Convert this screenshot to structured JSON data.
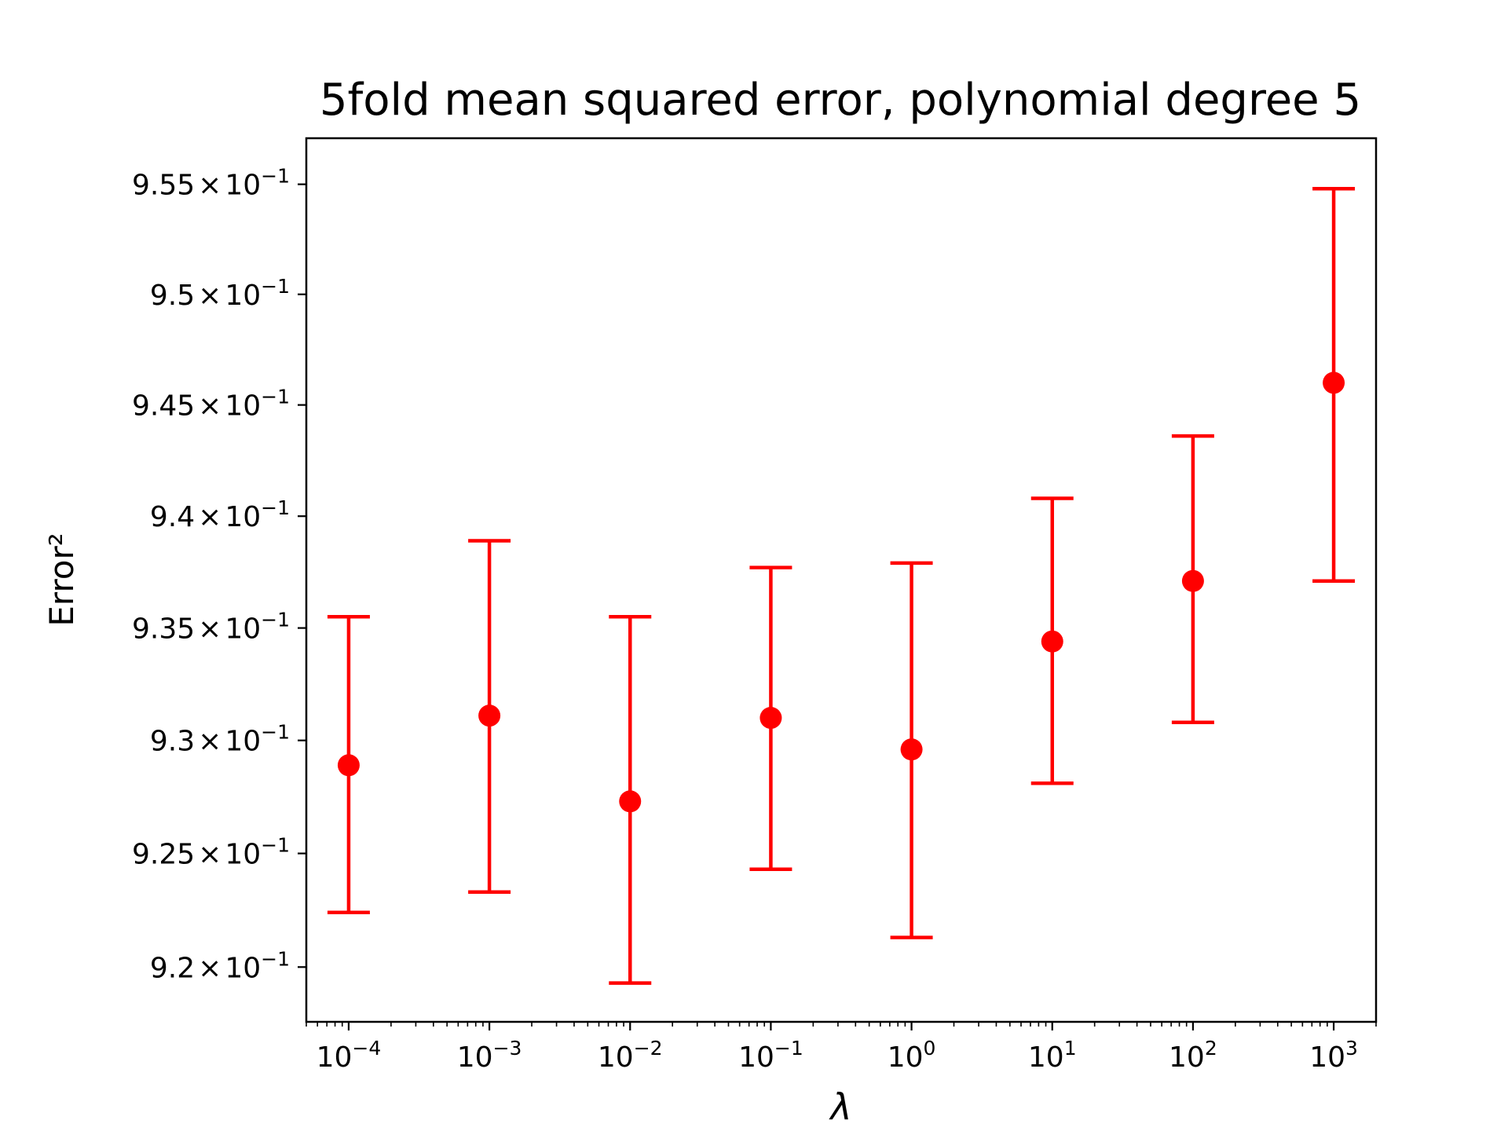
{
  "chart_data": {
    "type": "scatter",
    "title": "5fold mean squared error, polynomial degree 5",
    "xlabel": "λ",
    "ylabel": "Error²",
    "x_scale": "log",
    "y_scale": "log",
    "x": [
      0.0001,
      0.001,
      0.01,
      0.1,
      1,
      10,
      100,
      1000
    ],
    "series": [
      {
        "y": [
          0.9289,
          0.9311,
          0.9273,
          0.931,
          0.9296,
          0.9344,
          0.9371,
          0.946
        ],
        "y_low": [
          0.9224,
          0.9233,
          0.9193,
          0.9243,
          0.9213,
          0.9281,
          0.9308,
          0.9371
        ],
        "y_high": [
          0.9355,
          0.9389,
          0.9355,
          0.9377,
          0.9379,
          0.9408,
          0.9436,
          0.9548
        ],
        "color": "#ff0000",
        "marker": "circle",
        "errorbars": true
      }
    ],
    "xlim": [
      5e-05,
      2000
    ],
    "ylim": [
      0.9176,
      0.9571
    ],
    "x_ticks": [
      {
        "value": 0.0001,
        "base": "10",
        "exp": "−4"
      },
      {
        "value": 0.001,
        "base": "10",
        "exp": "−3"
      },
      {
        "value": 0.01,
        "base": "10",
        "exp": "−2"
      },
      {
        "value": 0.1,
        "base": "10",
        "exp": "−1"
      },
      {
        "value": 1,
        "base": "10",
        "exp": "0"
      },
      {
        "value": 10,
        "base": "10",
        "exp": "1"
      },
      {
        "value": 100,
        "base": "10",
        "exp": "2"
      },
      {
        "value": 1000,
        "base": "10",
        "exp": "3"
      }
    ],
    "y_ticks": [
      {
        "value": 0.92,
        "mantissa": "9.2",
        "times": "×",
        "base": "10",
        "exp": "−1"
      },
      {
        "value": 0.925,
        "mantissa": "9.25",
        "times": "×",
        "base": "10",
        "exp": "−1"
      },
      {
        "value": 0.93,
        "mantissa": "9.3",
        "times": "×",
        "base": "10",
        "exp": "−1"
      },
      {
        "value": 0.935,
        "mantissa": "9.35",
        "times": "×",
        "base": "10",
        "exp": "−1"
      },
      {
        "value": 0.94,
        "mantissa": "9.4",
        "times": "×",
        "base": "10",
        "exp": "−1"
      },
      {
        "value": 0.945,
        "mantissa": "9.45",
        "times": "×",
        "base": "10",
        "exp": "−1"
      },
      {
        "value": 0.95,
        "mantissa": "9.5",
        "times": "×",
        "base": "10",
        "exp": "−1"
      },
      {
        "value": 0.955,
        "mantissa": "9.55",
        "times": "×",
        "base": "10",
        "exp": "−1"
      }
    ],
    "grid": false,
    "legend": "none"
  }
}
